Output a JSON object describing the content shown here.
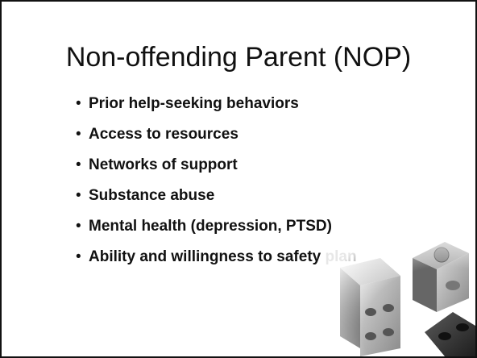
{
  "slide": {
    "title": "Non-offending Parent (NOP)",
    "bullets": [
      "Prior help-seeking behaviors",
      "Access to resources",
      "Networks of support",
      "Substance abuse",
      "Mental health (depression, PTSD)",
      "Ability and willingness to safety plan"
    ]
  }
}
